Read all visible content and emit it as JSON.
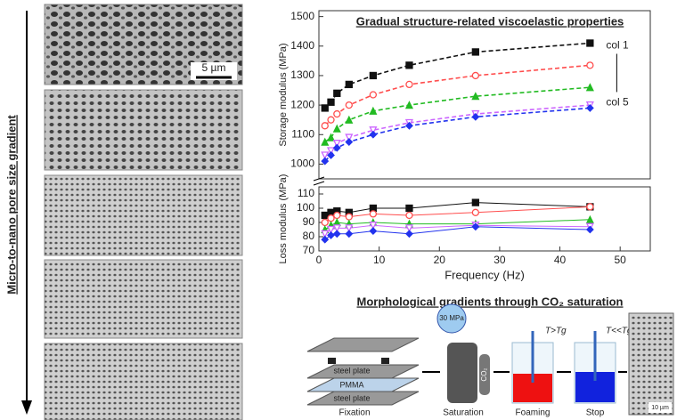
{
  "left_panel": {
    "axis_label": "Micro-to-nano pore size gradient",
    "scale_bar": "5 µm"
  },
  "chart_data": [
    {
      "type": "line",
      "title": "Gradual structure-related viscoelastic properties",
      "ylabel": "Storage modulus (MPa)",
      "line_style": "dashed",
      "annotations": [
        "col 1",
        "col 5"
      ],
      "x": [
        1,
        2,
        3,
        5,
        9,
        15,
        26,
        45
      ],
      "xlim": [
        0,
        55
      ],
      "ylim": [
        950,
        1520
      ],
      "yticks": [
        1000,
        1100,
        1200,
        1300,
        1400,
        1500
      ],
      "series": [
        {
          "color": "#111111",
          "marker": "square",
          "values": [
            1190,
            1210,
            1240,
            1270,
            1300,
            1335,
            1380,
            1410
          ]
        },
        {
          "color": "#ff4d4d",
          "marker": "circle-open",
          "values": [
            1130,
            1150,
            1170,
            1200,
            1235,
            1270,
            1300,
            1335
          ]
        },
        {
          "color": "#22bb22",
          "marker": "triangle",
          "values": [
            1075,
            1090,
            1120,
            1150,
            1180,
            1200,
            1230,
            1260
          ]
        },
        {
          "color": "#cc66ff",
          "marker": "triangle-open",
          "values": [
            1030,
            1045,
            1070,
            1090,
            1115,
            1140,
            1170,
            1200
          ]
        },
        {
          "color": "#2233ee",
          "marker": "diamond",
          "values": [
            1010,
            1030,
            1055,
            1075,
            1100,
            1130,
            1160,
            1190
          ]
        }
      ]
    },
    {
      "type": "line",
      "ylabel": "Loss modulus (MPa)",
      "xlabel": "Frequency (Hz)",
      "line_style": "solid",
      "x": [
        1,
        2,
        3,
        5,
        9,
        15,
        26,
        45
      ],
      "xlim": [
        0,
        55
      ],
      "xticks": [
        0,
        10,
        20,
        30,
        40,
        50
      ],
      "ylim": [
        70,
        115
      ],
      "yticks": [
        70,
        80,
        90,
        100,
        110
      ],
      "series": [
        {
          "color": "#111111",
          "marker": "square",
          "values": [
            95,
            97,
            98,
            97,
            100,
            100,
            104,
            101
          ]
        },
        {
          "color": "#ff4d4d",
          "marker": "circle-open",
          "values": [
            90,
            93,
            95,
            94,
            96,
            95,
            97,
            101
          ]
        },
        {
          "color": "#22bb22",
          "marker": "triangle",
          "values": [
            85,
            88,
            90,
            89,
            90,
            89,
            89,
            92
          ]
        },
        {
          "color": "#cc66ff",
          "marker": "triangle-open",
          "values": [
            82,
            85,
            86,
            86,
            88,
            86,
            88,
            87
          ]
        },
        {
          "color": "#2233ee",
          "marker": "diamond",
          "values": [
            78,
            81,
            82,
            82,
            84,
            82,
            87,
            85
          ]
        }
      ]
    }
  ],
  "process": {
    "title": "Morphological gradients through CO₂ saturation",
    "plate_top": "steel plate",
    "sample": "PMMA",
    "plate_bottom": "steel plate",
    "pressure": "30 MPa",
    "gas": "CO₂",
    "foam_temp": "T>Tg",
    "stop_temp": "T<<Tg",
    "scale_bar": "10 µm",
    "steps": [
      "Fixation",
      "Saturation",
      "Foaming",
      "Stop"
    ]
  }
}
